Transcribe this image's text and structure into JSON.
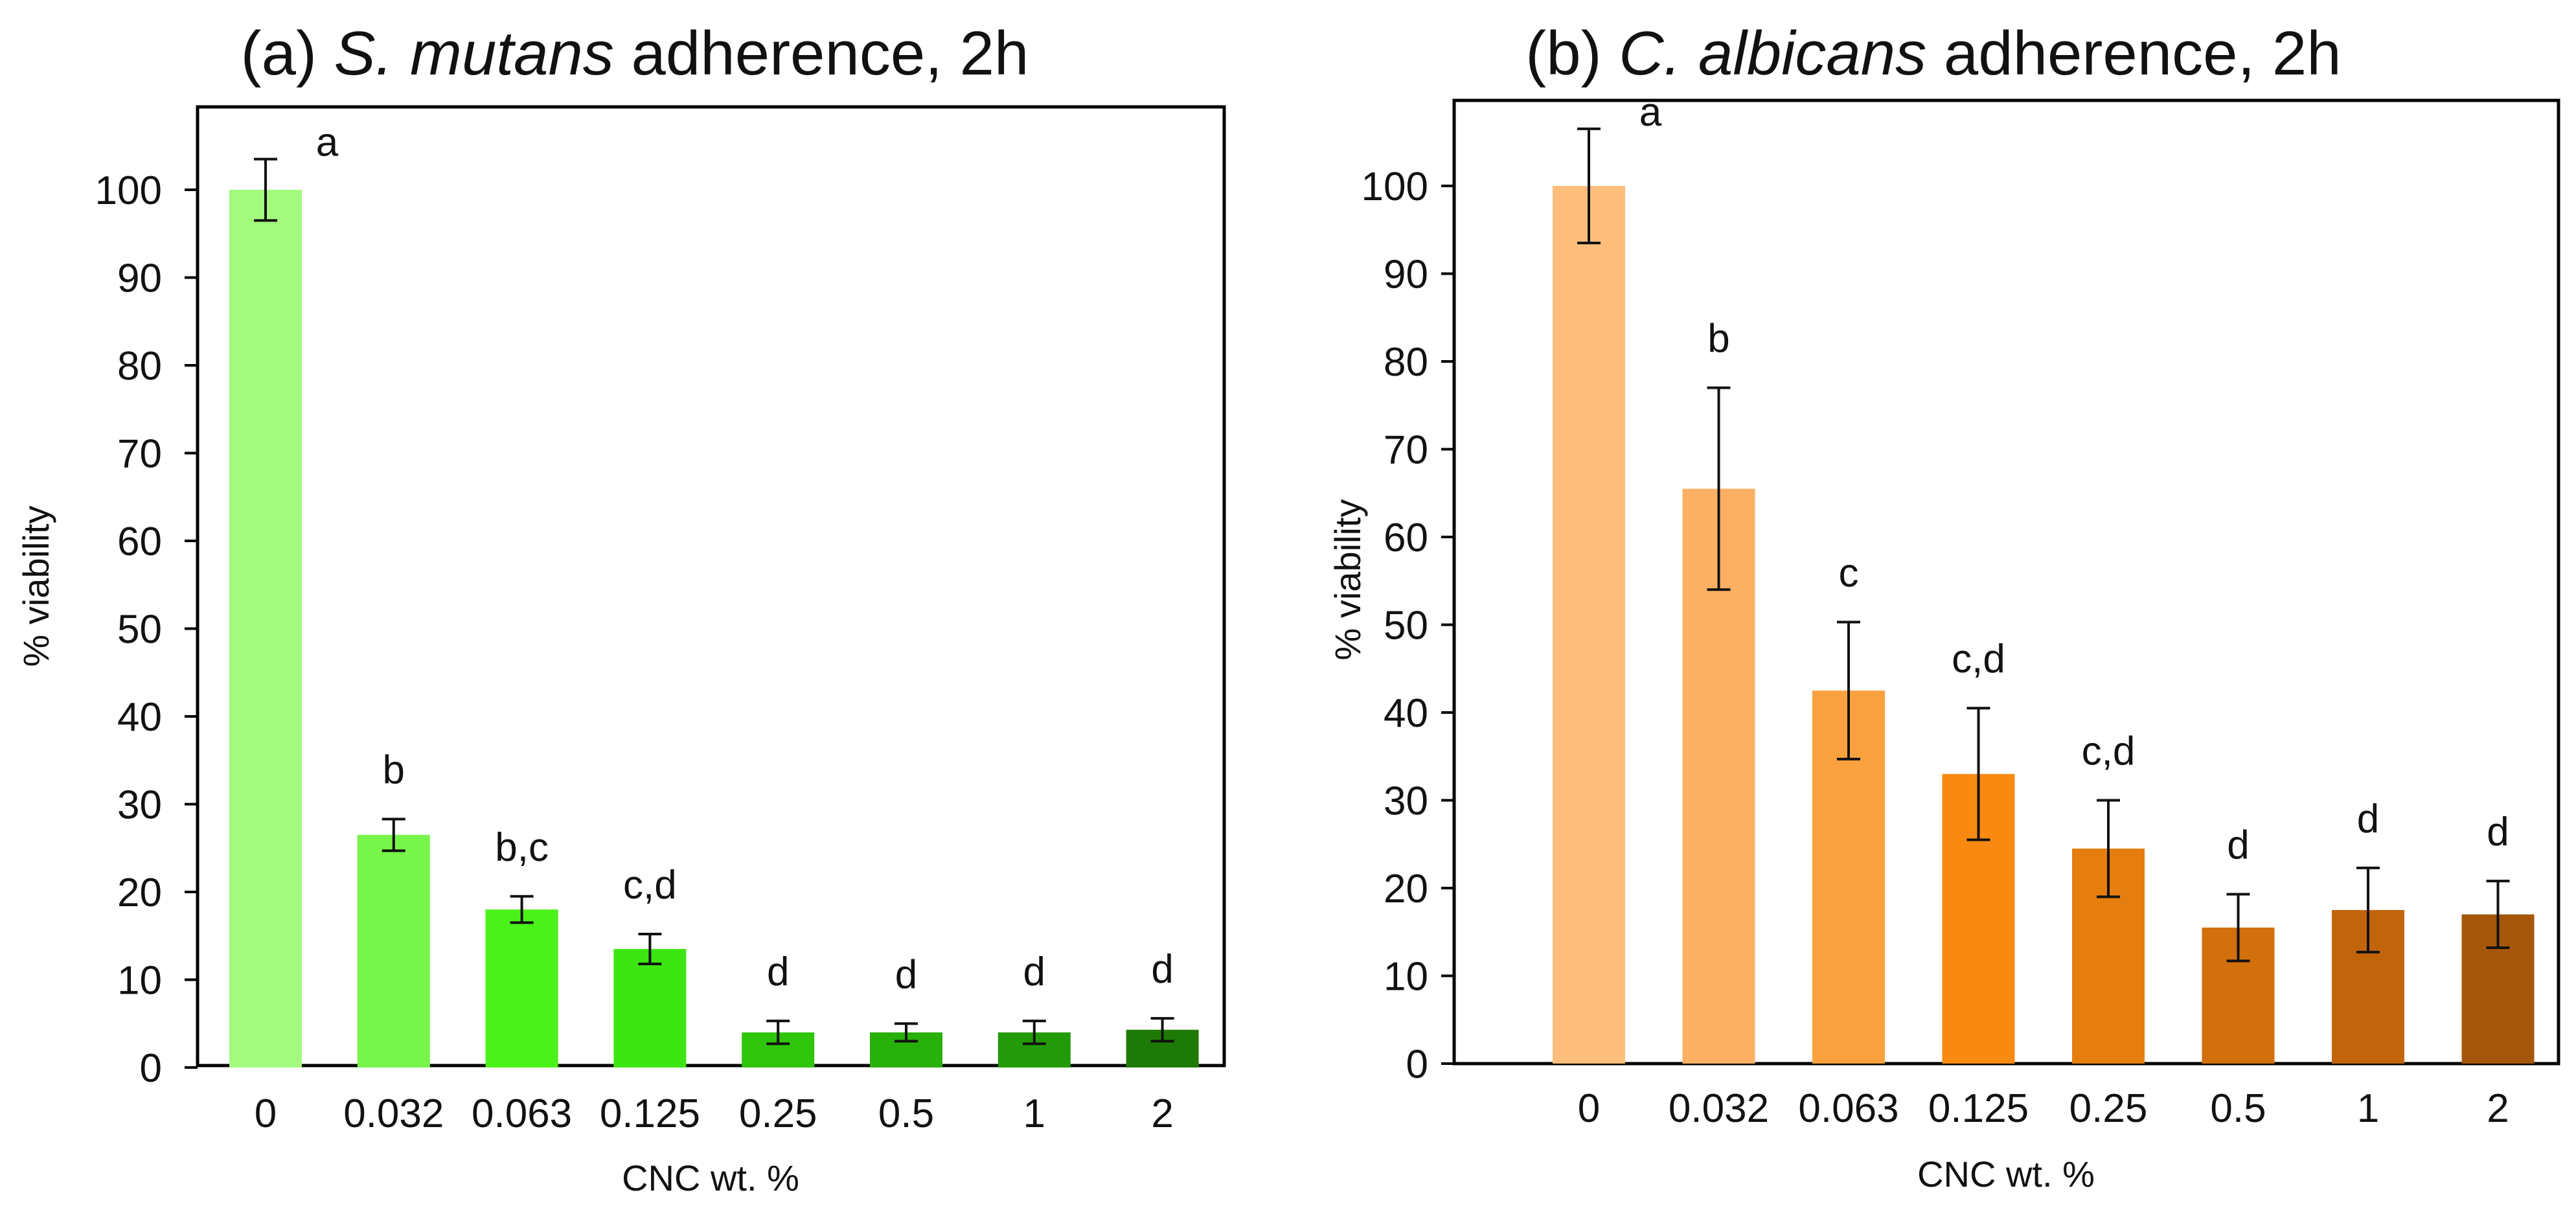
{
  "chart_data": [
    {
      "type": "bar",
      "title_prefix": "(a) ",
      "title_italic": "S. mutans",
      "title_suffix": " adherence,  2h",
      "xlabel": "CNC wt. %",
      "ylabel": "% viability",
      "ylim": [
        0,
        110
      ],
      "yticks": [
        0,
        10,
        20,
        30,
        40,
        50,
        60,
        70,
        80,
        90,
        100
      ],
      "categories": [
        "0",
        "0.032",
        "0.063",
        "0.125",
        "0.25",
        "0.5",
        "1",
        "2"
      ],
      "values": [
        100,
        26.5,
        18,
        13.5,
        4,
        4,
        4,
        4.3
      ],
      "errors": [
        3.5,
        1.8,
        1.5,
        1.7,
        1.3,
        1.0,
        1.3,
        1.3
      ],
      "significance": [
        "a",
        "b",
        "b,c",
        "c,d",
        "d",
        "d",
        "d",
        "d"
      ],
      "colors": [
        "#a2fa7e",
        "#78f54a",
        "#4bf219",
        "#3de611",
        "#2ec50c",
        "#28b00b",
        "#239a09",
        "#1d7a07"
      ]
    },
    {
      "type": "bar",
      "title_prefix": "(b) ",
      "title_italic": "C. albicans",
      "title_suffix": " adherence,  2h",
      "xlabel": "CNC wt. %",
      "ylabel": "% viability",
      "ylim": [
        0,
        110
      ],
      "yticks": [
        0,
        10,
        20,
        30,
        40,
        50,
        60,
        70,
        80,
        90,
        100
      ],
      "categories": [
        "0",
        "0.032",
        "0.063",
        "0.125",
        "0.25",
        "0.5",
        "1",
        "2"
      ],
      "values": [
        100,
        65.5,
        42.5,
        33,
        24.5,
        15.5,
        17.5,
        17
      ],
      "errors": [
        6.5,
        11.5,
        7.8,
        7.5,
        5.5,
        3.8,
        4.8,
        3.8
      ],
      "significance": [
        "a",
        "b",
        "c",
        "c,d",
        "c,d",
        "d",
        "d",
        "d"
      ],
      "colors": [
        "#fdbe7c",
        "#fbb064",
        "#f9a13f",
        "#f88a12",
        "#e57d0f",
        "#d2700d",
        "#c1640c",
        "#a6560b"
      ]
    }
  ]
}
